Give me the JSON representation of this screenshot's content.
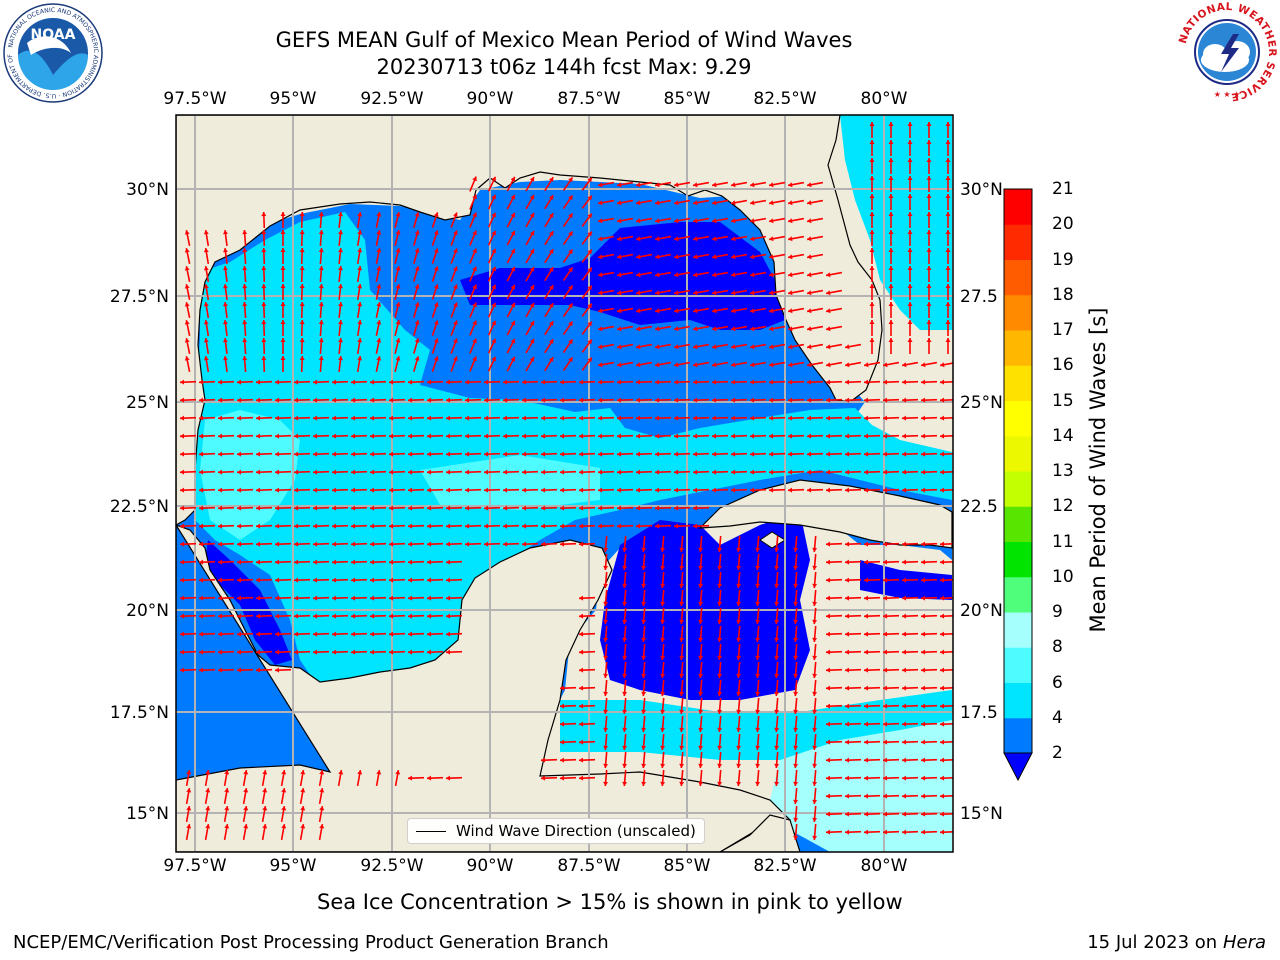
{
  "title": {
    "line1": "GEFS MEAN Gulf of Mexico Mean Period of Wind Waves",
    "line2": "20230713 t06z 144h fcst   Max: 9.29"
  },
  "logos": {
    "left": {
      "icon": "noaa-logo",
      "text": "NOAA",
      "ring": "NATIONAL OCEANIC AND ATMOSPHERIC ADMINISTRATION · U.S. DEPARTMENT OF COMMERCE"
    },
    "right": {
      "icon": "national-weather-service-logo",
      "ring": "NATIONAL WEATHER SERVICE"
    }
  },
  "map": {
    "lon_range": [
      -98.0,
      -78.3
    ],
    "lat_range": [
      14.0,
      31.6
    ],
    "lon_ticks": [
      "97.5°W",
      "95°W",
      "92.5°W",
      "90°W",
      "87.5°W",
      "85°W",
      "82.5°W",
      "80°W"
    ],
    "lat_ticks_left": [
      "30°N",
      "27.5°N",
      "25°N",
      "22.5°N",
      "20°N",
      "17.5°N",
      "15°N"
    ],
    "lat_ticks_right": [
      "30°N",
      "27.5",
      "25°N",
      "22.5",
      "20°N",
      "17.5",
      "15°N"
    ],
    "grid": true,
    "land_color": "#efecdc",
    "vector_color": "#ff0000",
    "legend_label": "Wind Wave Direction (unscaled)",
    "legend_position": "bottom-center"
  },
  "colorbar": {
    "label": "Mean Period of Wind Waves [s]",
    "ticks": [
      "2",
      "4",
      "6",
      "8",
      "9",
      "10",
      "11",
      "12",
      "13",
      "14",
      "15",
      "16",
      "17",
      "18",
      "19",
      "20",
      "21"
    ],
    "colors": [
      "#0000ff",
      "#007bff",
      "#00e5ff",
      "#4efbff",
      "#a5fffd",
      "#4fff7b",
      "#00e400",
      "#58e600",
      "#c3ff00",
      "#ecf800",
      "#ffff00",
      "#ffe100",
      "#ffb700",
      "#ff8a00",
      "#ff5c00",
      "#ff2a00",
      "#ff0000"
    ],
    "extend": "min"
  },
  "annotation": "Sea Ice Concentration > 15% is shown in pink to yellow",
  "footer": {
    "left": "NCEP/EMC/Verification Post Processing Product Generation Branch",
    "date": "15 Jul 2023 on",
    "machine": "Hera"
  }
}
